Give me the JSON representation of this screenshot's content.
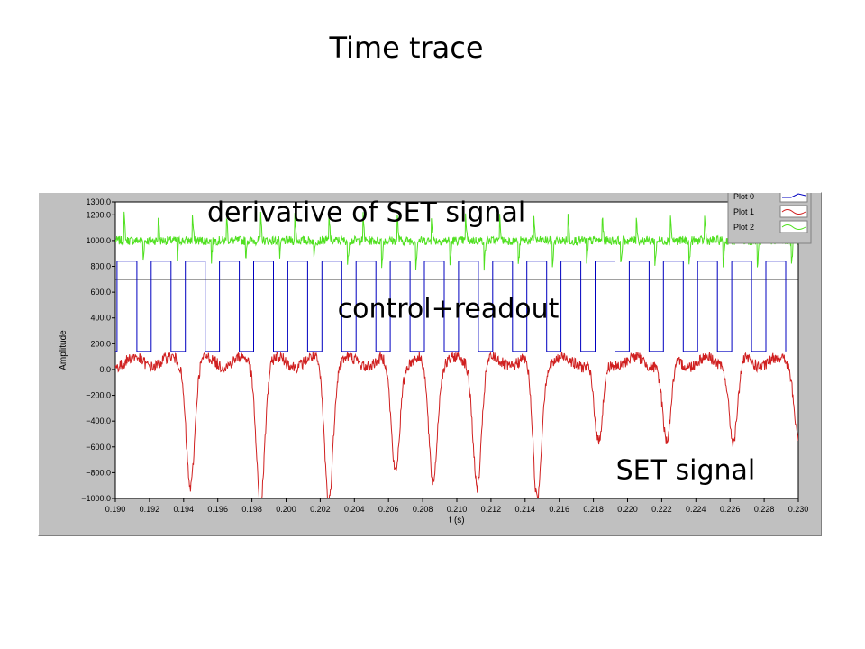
{
  "slide": {
    "title": "Time trace"
  },
  "chart_data": {
    "type": "line",
    "xlabel": "t (s)",
    "ylabel": "Amplitude",
    "xlim": [
      0.19,
      0.23
    ],
    "ylim": [
      -1000,
      1300
    ],
    "x_ticks": [
      "0.190",
      "0.192",
      "0.194",
      "0.196",
      "0.198",
      "0.200",
      "0.202",
      "0.204",
      "0.206",
      "0.208",
      "0.210",
      "0.212",
      "0.214",
      "0.216",
      "0.218",
      "0.220",
      "0.222",
      "0.224",
      "0.226",
      "0.228",
      "0.230"
    ],
    "y_ticks": [
      "1300.0",
      "1200.0",
      "1000.0",
      "800.0",
      "600.0",
      "400.0",
      "200.0",
      "0.0",
      "-200.0",
      "-400.0",
      "-600.0",
      "-800.0",
      "-1000.0"
    ],
    "grid": false,
    "legend_position": "top-right",
    "colors": {
      "plot0": "#0000c0",
      "plot1": "#d02020",
      "plot2": "#50e020",
      "ref_line": "#000000",
      "plot_bg": "#ffffff",
      "frame_bg": "#c0c0c0"
    },
    "series": [
      {
        "name": "Plot 0",
        "description_label": "control+readout",
        "kind": "square_wave",
        "period": 0.002,
        "first_rise": 0.1901,
        "duty": 0.58,
        "high": 840,
        "low": 140
      },
      {
        "name": "Plot 1",
        "description_label": "SET signal",
        "kind": "dips",
        "baseline": 60,
        "noise": 45,
        "dips": [
          {
            "t": 0.1944,
            "depth": -880
          },
          {
            "t": 0.1985,
            "depth": -1000
          },
          {
            "t": 0.2025,
            "depth": -980
          },
          {
            "t": 0.2064,
            "depth": -780
          },
          {
            "t": 0.2086,
            "depth": -850
          },
          {
            "t": 0.2112,
            "depth": -880
          },
          {
            "t": 0.2147,
            "depth": -1000
          },
          {
            "t": 0.2183,
            "depth": -600
          },
          {
            "t": 0.2223,
            "depth": -580
          },
          {
            "t": 0.2262,
            "depth": -560
          },
          {
            "t": 0.23,
            "depth": -480
          }
        ]
      },
      {
        "name": "Plot 2",
        "description_label": "derivative of SET signal",
        "kind": "spiky",
        "baseline": 1000,
        "noise": 35,
        "period": 0.002,
        "first_spike": 0.1905
      },
      {
        "name": "",
        "kind": "constant",
        "value": 700
      }
    ],
    "annotations": [
      {
        "text": "derivative of SET signal",
        "x": 0.2047,
        "y": 1150
      },
      {
        "text": "control+readout",
        "x": 0.2095,
        "y": 400
      },
      {
        "text": "SET signal",
        "x": 0.2234,
        "y": -850
      }
    ]
  }
}
